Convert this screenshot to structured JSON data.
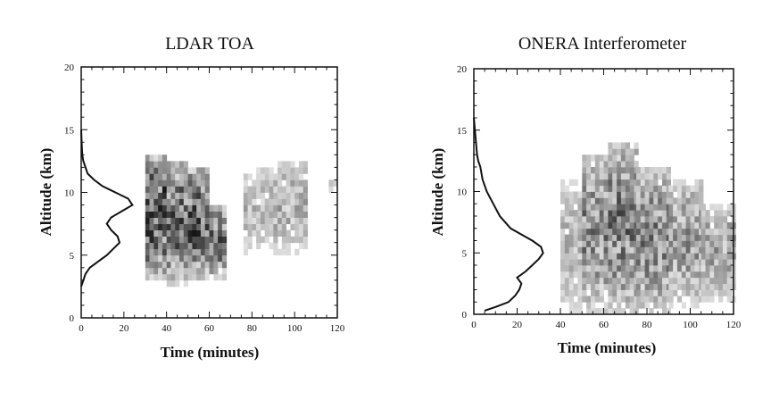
{
  "chart_data": [
    {
      "type": "heatmap",
      "title": "LDAR TOA",
      "xlabel": "Time (minutes)",
      "ylabel": "Altitude (km)",
      "xlim": [
        0,
        120
      ],
      "ylim": [
        0,
        20
      ],
      "x_ticks": [
        "0",
        "20",
        "40",
        "60",
        "80",
        "100",
        "120"
      ],
      "y_ticks": [
        "0",
        "5",
        "10",
        "15",
        "20"
      ],
      "altitude_profile": {
        "altitude_km": [
          2.5,
          3.0,
          3.5,
          4.0,
          4.5,
          5.0,
          5.5,
          6.0,
          6.5,
          7.0,
          7.5,
          8.0,
          8.5,
          9.0,
          9.5,
          10.0,
          10.5,
          11.0,
          11.5,
          12.0,
          12.5,
          13.0,
          14.0,
          15.0
        ],
        "relative_value": [
          0,
          1,
          2,
          4,
          8,
          12,
          15,
          18,
          17,
          14,
          12,
          14,
          19,
          24,
          22,
          16,
          10,
          6,
          3,
          2,
          1,
          0.5,
          0.2,
          0
        ]
      },
      "density_blocks": [
        {
          "time_range": [
            30,
            40
          ],
          "alt_range": [
            3,
            13
          ],
          "intensity": 0.85
        },
        {
          "time_range": [
            40,
            50
          ],
          "alt_range": [
            2.5,
            12.5
          ],
          "intensity": 0.75
        },
        {
          "time_range": [
            50,
            60
          ],
          "alt_range": [
            3,
            12
          ],
          "intensity": 0.8
        },
        {
          "time_range": [
            60,
            68
          ],
          "alt_range": [
            3,
            9
          ],
          "intensity": 0.7
        },
        {
          "time_range": [
            76,
            90
          ],
          "alt_range": [
            5,
            12
          ],
          "intensity": 0.35
        },
        {
          "time_range": [
            90,
            105
          ],
          "alt_range": [
            5,
            12.5
          ],
          "intensity": 0.4
        },
        {
          "time_range": [
            116,
            119
          ],
          "alt_range": [
            10,
            11
          ],
          "intensity": 0.45
        }
      ]
    },
    {
      "type": "heatmap",
      "title": "ONERA Interferometer",
      "xlabel": "Time (minutes)",
      "ylabel": "Altitude (km)",
      "xlim": [
        0,
        120
      ],
      "ylim": [
        0,
        20
      ],
      "x_ticks": [
        "0",
        "20",
        "40",
        "60",
        "80",
        "100",
        "120"
      ],
      "y_ticks": [
        "0",
        "5",
        "10",
        "15",
        "20"
      ],
      "altitude_profile": {
        "altitude_km": [
          0.3,
          0.6,
          1.0,
          1.5,
          2.0,
          2.5,
          3.0,
          3.5,
          4.0,
          4.5,
          5.0,
          5.5,
          6.0,
          6.5,
          7.0,
          8.0,
          9.0,
          10.0,
          11.0,
          12.0,
          12.5,
          13.0,
          14.0,
          15.0,
          16.0
        ],
        "relative_value": [
          5,
          10,
          16,
          19,
          21,
          22,
          20,
          24,
          27,
          30,
          32,
          31,
          27,
          22,
          17,
          12,
          9,
          6,
          4,
          3,
          2,
          1.5,
          1,
          0.5,
          0
        ]
      },
      "density_blocks": [
        {
          "time_range": [
            40,
            50
          ],
          "alt_range": [
            0,
            11
          ],
          "intensity": 0.35
        },
        {
          "time_range": [
            50,
            62
          ],
          "alt_range": [
            0,
            13
          ],
          "intensity": 0.6
        },
        {
          "time_range": [
            62,
            75
          ],
          "alt_range": [
            0,
            14
          ],
          "intensity": 0.65
        },
        {
          "time_range": [
            75,
            90
          ],
          "alt_range": [
            0,
            12
          ],
          "intensity": 0.6
        },
        {
          "time_range": [
            90,
            105
          ],
          "alt_range": [
            0.5,
            11
          ],
          "intensity": 0.5
        },
        {
          "time_range": [
            105,
            120
          ],
          "alt_range": [
            1,
            9
          ],
          "intensity": 0.45
        }
      ]
    }
  ]
}
